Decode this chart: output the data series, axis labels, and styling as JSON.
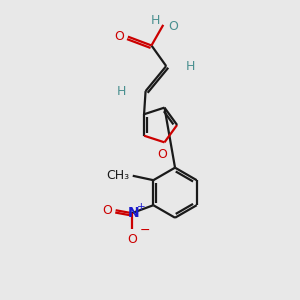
{
  "bg_color": "#e8e8e8",
  "bond_color": "#1a1a1a",
  "oxygen_color": "#cc0000",
  "nitrogen_color": "#1a1acc",
  "teal_color": "#4a9090",
  "line_width": 1.6,
  "fig_width": 3.0,
  "fig_height": 3.0,
  "dpi": 100,
  "xlim": [
    0,
    10
  ],
  "ylim": [
    0,
    10
  ]
}
